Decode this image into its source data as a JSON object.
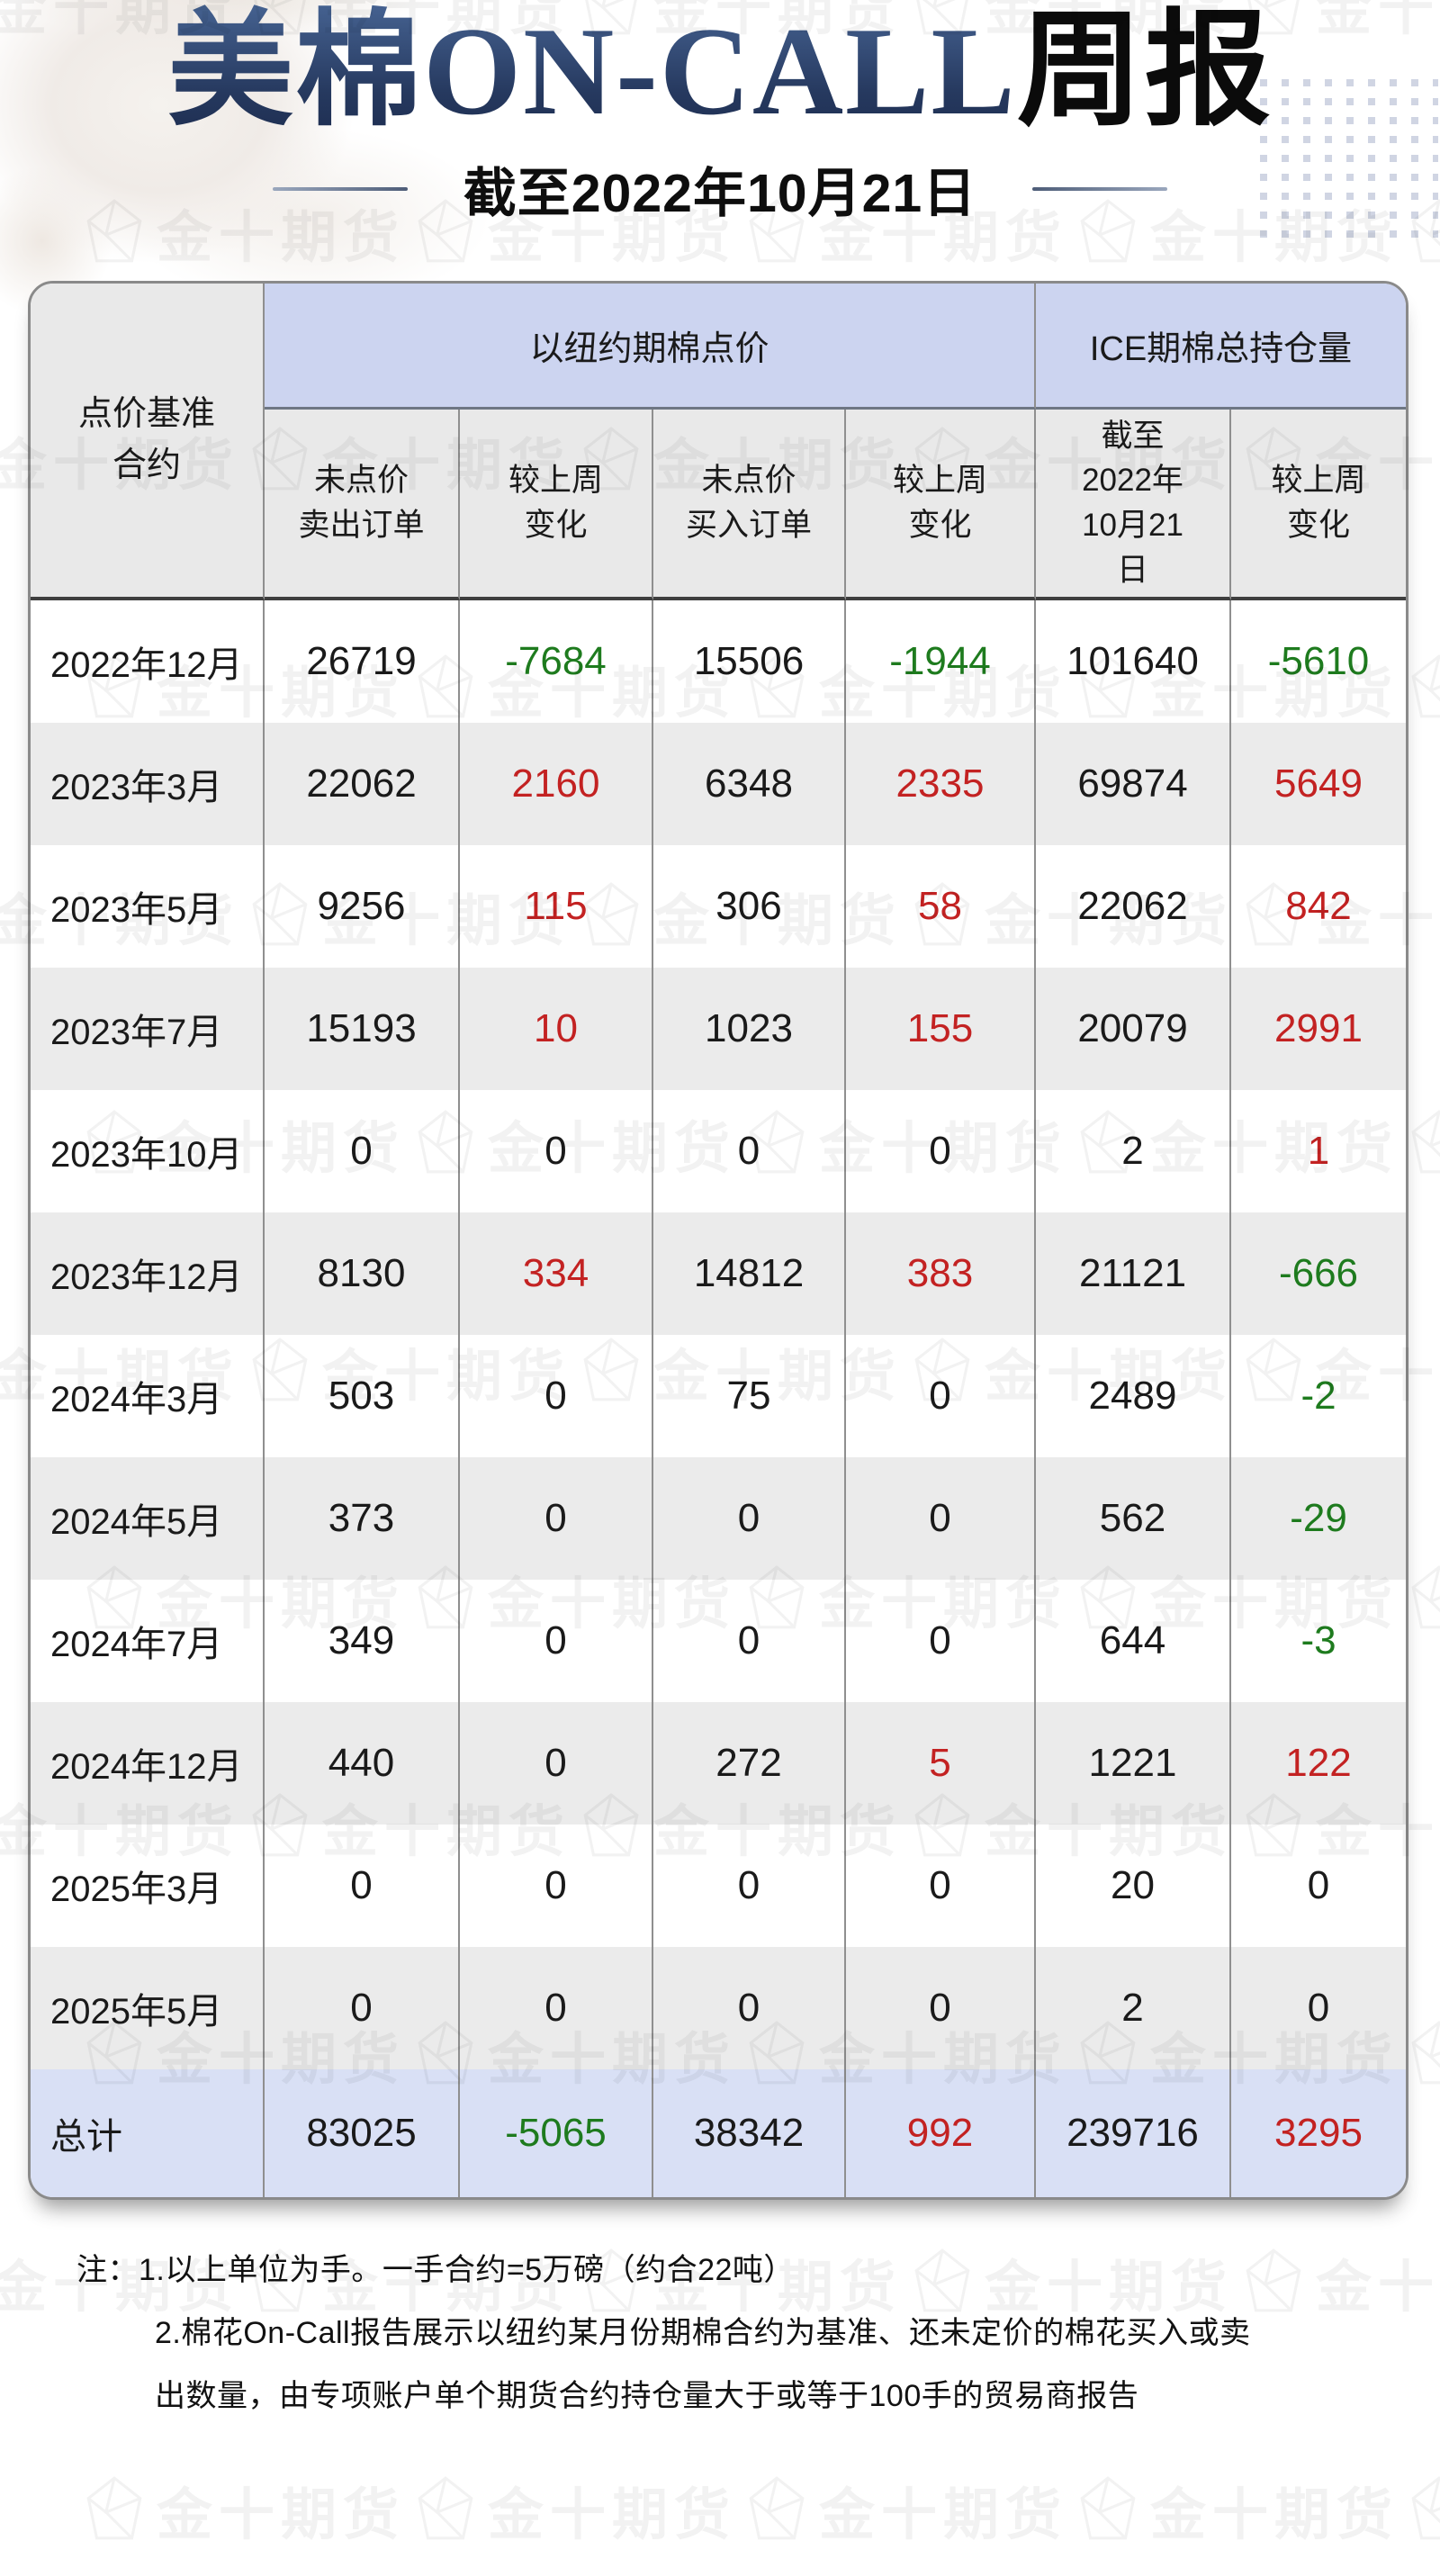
{
  "title": {
    "main": "美棉ON-CALL",
    "suffix": "周报",
    "subtitle": "截至2022年10月21日"
  },
  "watermark": {
    "brand": "金十期货"
  },
  "colors": {
    "title_navy": "#2c4269",
    "group_header_band": "#ccd4f0",
    "subheader_gray": "#e9e9e9",
    "row_alt_gray": "#ebebeb",
    "total_band": "#d9e0f5",
    "increase_red": "#c32222",
    "decrease_green": "#1e7b1e",
    "text_dark": "#1a1a1a"
  },
  "table": {
    "corner_header": "点价基准\n合约",
    "groups": [
      {
        "label": "以纽约期棉点价"
      },
      {
        "label": "ICE期棉总持仓量"
      }
    ],
    "columns": [
      "未点价\n卖出订单",
      "较上周\n变化",
      "未点价\n买入订单",
      "较上周\n变化",
      "截至\n2022年\n10月21\n日",
      "较上周\n变化"
    ],
    "rows": [
      {
        "contract": "2022年12月",
        "values": [
          "26719",
          "-7684",
          "15506",
          "-1944",
          "101640",
          "-5610"
        ],
        "trend": [
          "",
          "down",
          "",
          "down",
          "",
          "down"
        ]
      },
      {
        "contract": "2023年3月",
        "values": [
          "22062",
          "2160",
          "6348",
          "2335",
          "69874",
          "5649"
        ],
        "trend": [
          "",
          "up",
          "",
          "up",
          "",
          "up"
        ]
      },
      {
        "contract": "2023年5月",
        "values": [
          "9256",
          "115",
          "306",
          "58",
          "22062",
          "842"
        ],
        "trend": [
          "",
          "up",
          "",
          "up",
          "",
          "up"
        ]
      },
      {
        "contract": "2023年7月",
        "values": [
          "15193",
          "10",
          "1023",
          "155",
          "20079",
          "2991"
        ],
        "trend": [
          "",
          "up",
          "",
          "up",
          "",
          "up"
        ]
      },
      {
        "contract": "2023年10月",
        "values": [
          "0",
          "0",
          "0",
          "0",
          "2",
          "1"
        ],
        "trend": [
          "",
          "",
          "",
          "",
          "",
          "up"
        ]
      },
      {
        "contract": "2023年12月",
        "values": [
          "8130",
          "334",
          "14812",
          "383",
          "21121",
          "-666"
        ],
        "trend": [
          "",
          "up",
          "",
          "up",
          "",
          "down"
        ]
      },
      {
        "contract": "2024年3月",
        "values": [
          "503",
          "0",
          "75",
          "0",
          "2489",
          "-2"
        ],
        "trend": [
          "",
          "",
          "",
          "",
          "",
          "down"
        ]
      },
      {
        "contract": "2024年5月",
        "values": [
          "373",
          "0",
          "0",
          "0",
          "562",
          "-29"
        ],
        "trend": [
          "",
          "",
          "",
          "",
          "",
          "down"
        ]
      },
      {
        "contract": "2024年7月",
        "values": [
          "349",
          "0",
          "0",
          "0",
          "644",
          "-3"
        ],
        "trend": [
          "",
          "",
          "",
          "",
          "",
          "down"
        ]
      },
      {
        "contract": "2024年12月",
        "values": [
          "440",
          "0",
          "272",
          "5",
          "1221",
          "122"
        ],
        "trend": [
          "",
          "",
          "",
          "up",
          "",
          "up"
        ]
      },
      {
        "contract": "2025年3月",
        "values": [
          "0",
          "0",
          "0",
          "0",
          "20",
          "0"
        ],
        "trend": [
          "",
          "",
          "",
          "",
          "",
          ""
        ]
      },
      {
        "contract": "2025年5月",
        "values": [
          "0",
          "0",
          "0",
          "0",
          "2",
          "0"
        ],
        "trend": [
          "",
          "",
          "",
          "",
          "",
          ""
        ]
      }
    ],
    "total": {
      "label": "总计",
      "values": [
        "83025",
        "-5065",
        "38342",
        "992",
        "239716",
        "3295"
      ],
      "trend": [
        "",
        "down",
        "",
        "up",
        "",
        "up"
      ]
    }
  },
  "notes": [
    "注：1.以上单位为手。一手合约=5万磅（约合22吨）",
    "2.棉花On-Call报告展示以纽约某月份期棉合约为基准、还未定价的棉花买入或卖",
    "出数量，由专项账户单个期货合约持仓量大于或等于100手的贸易商报告"
  ]
}
